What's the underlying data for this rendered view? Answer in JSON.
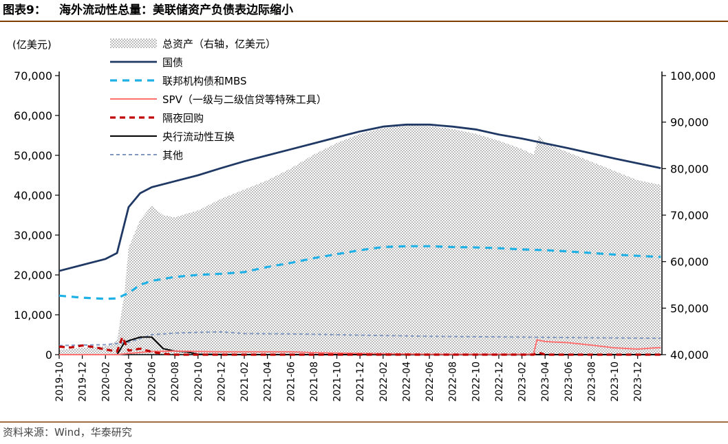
{
  "header": {
    "label": "图表9：",
    "title": "海外流动性总量：美联储资产负债表边际缩小"
  },
  "source": "资料来源：Wind，华泰研究",
  "colors": {
    "header_rule": "#7f3f00",
    "treasury": "#1f3864",
    "agency_mbs": "#1fb0e6",
    "spv": "#ff7070",
    "repo": "#c00000",
    "swap": "#000000",
    "other": "#7f96c0",
    "area": "#a6a6a6"
  },
  "chart_data": {
    "type": "line",
    "title": "",
    "left_axis": {
      "label": "(亿美元)",
      "ylim": [
        0,
        70000
      ],
      "ticks": [
        "0",
        "10,000",
        "20,000",
        "30,000",
        "40,000",
        "50,000",
        "60,000",
        "70,000"
      ]
    },
    "right_axis": {
      "ylim": [
        40000,
        100000
      ],
      "ticks": [
        "40,000",
        "50,000",
        "60,000",
        "70,000",
        "80,000",
        "90,000",
        "100,000"
      ]
    },
    "x_start": "2019-10",
    "x_ticks": [
      "2019-10",
      "2019-12",
      "2020-02",
      "2020-04",
      "2020-06",
      "2020-08",
      "2020-10",
      "2020-12",
      "2021-02",
      "2021-04",
      "2021-06",
      "2021-08",
      "2021-10",
      "2021-12",
      "2022-02",
      "2022-04",
      "2022-06",
      "2022-08",
      "2022-10",
      "2022-12",
      "2023-02",
      "2023-04",
      "2023-06",
      "2023-08",
      "2023-10",
      "2023-12"
    ],
    "legend_position": "top-left",
    "series": [
      {
        "key": "area",
        "name": "总资产（右轴，亿美元）",
        "axis": "right",
        "style": "area",
        "points": [
          [
            "2019-10",
            41000
          ],
          [
            "2019-12",
            41500
          ],
          [
            "2020-02",
            41800
          ],
          [
            "2020-03",
            43000
          ],
          [
            "2020-03-20",
            53000
          ],
          [
            "2020-04",
            63000
          ],
          [
            "2020-05",
            69000
          ],
          [
            "2020-06",
            72000
          ],
          [
            "2020-07",
            70000
          ],
          [
            "2020-08",
            69500
          ],
          [
            "2020-09",
            70300
          ],
          [
            "2020-10",
            71000
          ],
          [
            "2020-12",
            73500
          ],
          [
            "2021-02",
            75500
          ],
          [
            "2021-04",
            77500
          ],
          [
            "2021-06",
            80000
          ],
          [
            "2021-08",
            83000
          ],
          [
            "2021-10",
            85500
          ],
          [
            "2021-12",
            87500
          ],
          [
            "2022-02",
            88700
          ],
          [
            "2022-04",
            89300
          ],
          [
            "2022-06",
            89200
          ],
          [
            "2022-08",
            88500
          ],
          [
            "2022-10",
            87500
          ],
          [
            "2022-12",
            86000
          ],
          [
            "2023-02",
            84200
          ],
          [
            "2023-03",
            83000
          ],
          [
            "2023-03-15",
            87000
          ],
          [
            "2023-04",
            85500
          ],
          [
            "2023-06",
            83500
          ],
          [
            "2023-08",
            81500
          ],
          [
            "2023-10",
            79500
          ],
          [
            "2023-12",
            77500
          ],
          [
            "2024-02",
            76500
          ]
        ]
      },
      {
        "key": "treasury",
        "name": "国债",
        "axis": "left",
        "style": "solid-thick",
        "points": [
          [
            "2019-10",
            21000
          ],
          [
            "2019-12",
            22500
          ],
          [
            "2020-02",
            24000
          ],
          [
            "2020-03",
            25500
          ],
          [
            "2020-04",
            37000
          ],
          [
            "2020-05",
            40500
          ],
          [
            "2020-06",
            42000
          ],
          [
            "2020-08",
            43500
          ],
          [
            "2020-10",
            45000
          ],
          [
            "2020-12",
            46800
          ],
          [
            "2021-02",
            48500
          ],
          [
            "2021-04",
            50000
          ],
          [
            "2021-06",
            51500
          ],
          [
            "2021-08",
            53000
          ],
          [
            "2021-10",
            54500
          ],
          [
            "2021-12",
            56000
          ],
          [
            "2022-02",
            57200
          ],
          [
            "2022-04",
            57700
          ],
          [
            "2022-06",
            57700
          ],
          [
            "2022-08",
            57200
          ],
          [
            "2022-10",
            56500
          ],
          [
            "2022-12",
            55200
          ],
          [
            "2023-02",
            54200
          ],
          [
            "2023-04",
            53000
          ],
          [
            "2023-06",
            51800
          ],
          [
            "2023-08",
            50500
          ],
          [
            "2023-10",
            49200
          ],
          [
            "2023-12",
            48000
          ],
          [
            "2024-02",
            46800
          ]
        ]
      },
      {
        "key": "agency_mbs",
        "name": "联邦机构债和MBS",
        "axis": "left",
        "style": "dashed-thick",
        "points": [
          [
            "2019-10",
            14800
          ],
          [
            "2019-12",
            14300
          ],
          [
            "2020-02",
            14000
          ],
          [
            "2020-03",
            14100
          ],
          [
            "2020-04",
            15500
          ],
          [
            "2020-05",
            17500
          ],
          [
            "2020-06",
            18500
          ],
          [
            "2020-08",
            19500
          ],
          [
            "2020-10",
            20000
          ],
          [
            "2020-12",
            20300
          ],
          [
            "2021-02",
            20700
          ],
          [
            "2021-04",
            22000
          ],
          [
            "2021-06",
            23000
          ],
          [
            "2021-08",
            24200
          ],
          [
            "2021-10",
            25200
          ],
          [
            "2021-12",
            26200
          ],
          [
            "2022-02",
            27000
          ],
          [
            "2022-04",
            27200
          ],
          [
            "2022-06",
            27200
          ],
          [
            "2022-08",
            27000
          ],
          [
            "2022-10",
            26900
          ],
          [
            "2022-12",
            26700
          ],
          [
            "2023-02",
            26400
          ],
          [
            "2023-04",
            26200
          ],
          [
            "2023-06",
            25900
          ],
          [
            "2023-08",
            25500
          ],
          [
            "2023-10",
            25100
          ],
          [
            "2023-12",
            24800
          ],
          [
            "2024-02",
            24500
          ]
        ]
      },
      {
        "key": "spv",
        "name": "SPV（一级与二级信贷等特殊工具）",
        "axis": "left",
        "style": "solid",
        "points": [
          [
            "2019-10",
            0
          ],
          [
            "2020-03",
            0
          ],
          [
            "2020-04",
            300
          ],
          [
            "2020-06",
            800
          ],
          [
            "2020-08",
            900
          ],
          [
            "2020-10",
            800
          ],
          [
            "2020-12",
            700
          ],
          [
            "2021-06",
            700
          ],
          [
            "2021-08",
            500
          ],
          [
            "2021-12",
            300
          ],
          [
            "2022-06",
            100
          ],
          [
            "2023-02",
            100
          ],
          [
            "2023-03",
            150
          ],
          [
            "2023-03-10",
            3700
          ],
          [
            "2023-04",
            3300
          ],
          [
            "2023-06",
            3000
          ],
          [
            "2023-08",
            2400
          ],
          [
            "2023-10",
            1700
          ],
          [
            "2023-12",
            1400
          ],
          [
            "2024-02",
            1800
          ]
        ]
      },
      {
        "key": "repo",
        "name": "隔夜回购",
        "axis": "left",
        "style": "dashed-thick",
        "points": [
          [
            "2019-10",
            2000
          ],
          [
            "2019-11",
            1800
          ],
          [
            "2019-12",
            2300
          ],
          [
            "2020-01",
            1900
          ],
          [
            "2020-02",
            1300
          ],
          [
            "2020-03",
            800
          ],
          [
            "2020-03-15",
            4400
          ],
          [
            "2020-04",
            1000
          ],
          [
            "2020-05",
            1500
          ],
          [
            "2020-06",
            700
          ],
          [
            "2020-07",
            200
          ],
          [
            "2020-08",
            0
          ],
          [
            "2023-03",
            0
          ],
          [
            "2023-03-15",
            500
          ],
          [
            "2023-04",
            0
          ],
          [
            "2024-02",
            0
          ]
        ]
      },
      {
        "key": "swap",
        "name": "央行流动性互换",
        "axis": "left",
        "style": "solid",
        "points": [
          [
            "2019-10",
            0
          ],
          [
            "2020-03",
            0
          ],
          [
            "2020-03-20",
            3000
          ],
          [
            "2020-04",
            3500
          ],
          [
            "2020-05",
            4400
          ],
          [
            "2020-06",
            4400
          ],
          [
            "2020-07",
            1500
          ],
          [
            "2020-08",
            900
          ],
          [
            "2020-09",
            700
          ],
          [
            "2020-10",
            100
          ],
          [
            "2021-01",
            0
          ],
          [
            "2024-02",
            0
          ]
        ]
      },
      {
        "key": "other",
        "name": "其他",
        "axis": "left",
        "style": "dashed",
        "points": [
          [
            "2019-10",
            2300
          ],
          [
            "2019-12",
            2400
          ],
          [
            "2020-02",
            2500
          ],
          [
            "2020-04",
            3100
          ],
          [
            "2020-06",
            5000
          ],
          [
            "2020-08",
            5400
          ],
          [
            "2020-10",
            5600
          ],
          [
            "2020-12",
            5700
          ],
          [
            "2021-02",
            5300
          ],
          [
            "2021-06",
            5200
          ],
          [
            "2021-10",
            5000
          ],
          [
            "2022-02",
            4800
          ],
          [
            "2022-06",
            4600
          ],
          [
            "2022-10",
            4500
          ],
          [
            "2023-02",
            4400
          ],
          [
            "2023-06",
            4300
          ],
          [
            "2023-10",
            4200
          ],
          [
            "2024-02",
            4100
          ]
        ]
      }
    ]
  }
}
